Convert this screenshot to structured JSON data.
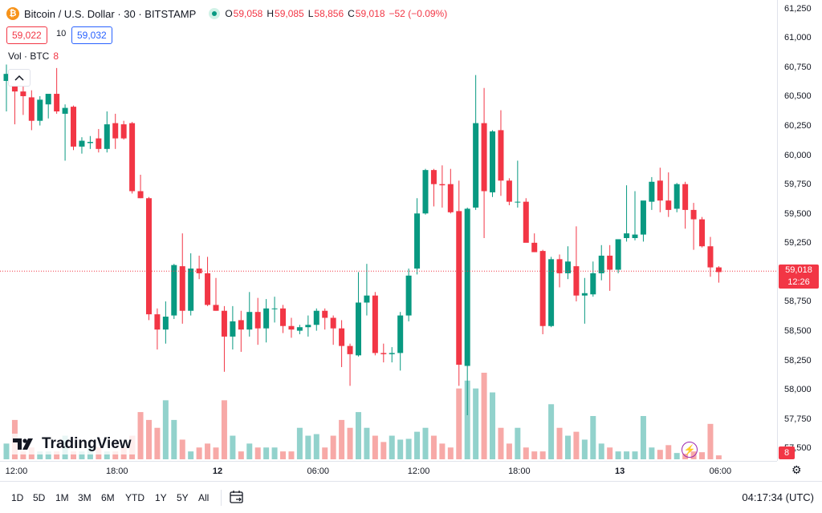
{
  "symbol": {
    "title": "Bitcoin / U.S. Dollar · 30 · BITSTAMP",
    "icon": "bitcoin-icon",
    "open_key": "O",
    "open": "59,058",
    "high_key": "H",
    "high": "59,085",
    "low_key": "L",
    "low": "58,856",
    "close_key": "C",
    "close": "59,018",
    "change": "−52 (−0.09%)"
  },
  "trade": {
    "sell": "59,022",
    "spread": "10",
    "buy": "59,032"
  },
  "volume": {
    "label": "Vol · BTC",
    "value": "8"
  },
  "price_axis": {
    "labels": [
      "61,250",
      "61,000",
      "60,750",
      "60,500",
      "60,250",
      "60,000",
      "59,750",
      "59,500",
      "59,250",
      "59,000",
      "58,750",
      "58,500",
      "58,250",
      "58,000",
      "57,750",
      "57,500"
    ]
  },
  "current_price": {
    "value": "59,018",
    "countdown": "12:26"
  },
  "time_axis": {
    "labels": [
      "12:00",
      "18:00",
      "12",
      "06:00",
      "12:00",
      "18:00",
      "13",
      "06:00"
    ]
  },
  "ranges": [
    "1D",
    "5D",
    "1M",
    "3M",
    "6M",
    "YTD",
    "1Y",
    "5Y",
    "All"
  ],
  "clock": "04:17:34 (UTC)",
  "logo": "TradingView",
  "colors": {
    "up": "#089981",
    "down": "#f23645",
    "up_vol": "#92d2cc",
    "down_vol": "#f7a9a7"
  },
  "chart_data": {
    "type": "candlestick",
    "interval": "30",
    "ylim": [
      57400,
      61330
    ],
    "candles": [
      {
        "o": 60640,
        "h": 60780,
        "l": 60380,
        "c": 60700
      },
      {
        "o": 60680,
        "h": 60720,
        "l": 60270,
        "c": 60550
      },
      {
        "o": 60550,
        "h": 60600,
        "l": 60350,
        "c": 60510
      },
      {
        "o": 60500,
        "h": 60560,
        "l": 60220,
        "c": 60300
      },
      {
        "o": 60300,
        "h": 60510,
        "l": 60260,
        "c": 60480
      },
      {
        "o": 60440,
        "h": 60520,
        "l": 60320,
        "c": 60530
      },
      {
        "o": 60530,
        "h": 60750,
        "l": 60360,
        "c": 60380
      },
      {
        "o": 60360,
        "h": 60440,
        "l": 59960,
        "c": 60410
      },
      {
        "o": 60420,
        "h": 60430,
        "l": 60050,
        "c": 60080
      },
      {
        "o": 60080,
        "h": 60160,
        "l": 60020,
        "c": 60130
      },
      {
        "o": 60110,
        "h": 60170,
        "l": 60060,
        "c": 60120
      },
      {
        "o": 60150,
        "h": 60230,
        "l": 60030,
        "c": 60060
      },
      {
        "o": 60060,
        "h": 60380,
        "l": 60030,
        "c": 60270
      },
      {
        "o": 60280,
        "h": 60360,
        "l": 60060,
        "c": 60150
      },
      {
        "o": 60270,
        "h": 60300,
        "l": 60140,
        "c": 60150
      },
      {
        "o": 60280,
        "h": 60290,
        "l": 59680,
        "c": 59700
      },
      {
        "o": 59700,
        "h": 59840,
        "l": 59640,
        "c": 59640
      },
      {
        "o": 59640,
        "h": 59650,
        "l": 58600,
        "c": 58650
      },
      {
        "o": 58650,
        "h": 58700,
        "l": 58350,
        "c": 58520
      },
      {
        "o": 58520,
        "h": 58760,
        "l": 58400,
        "c": 58630
      },
      {
        "o": 58640,
        "h": 59080,
        "l": 58610,
        "c": 59070
      },
      {
        "o": 59060,
        "h": 59340,
        "l": 58570,
        "c": 58680
      },
      {
        "o": 58680,
        "h": 59170,
        "l": 58640,
        "c": 59040
      },
      {
        "o": 59040,
        "h": 59150,
        "l": 58950,
        "c": 59000
      },
      {
        "o": 59000,
        "h": 59140,
        "l": 58720,
        "c": 58730
      },
      {
        "o": 58730,
        "h": 58960,
        "l": 58680,
        "c": 58680
      },
      {
        "o": 58680,
        "h": 58720,
        "l": 58160,
        "c": 58460
      },
      {
        "o": 58460,
        "h": 58720,
        "l": 58350,
        "c": 58590
      },
      {
        "o": 58600,
        "h": 58680,
        "l": 58330,
        "c": 58520
      },
      {
        "o": 58520,
        "h": 58840,
        "l": 58460,
        "c": 58670
      },
      {
        "o": 58670,
        "h": 58790,
        "l": 58390,
        "c": 58530
      },
      {
        "o": 58530,
        "h": 58780,
        "l": 58410,
        "c": 58700
      },
      {
        "o": 58700,
        "h": 58800,
        "l": 58580,
        "c": 58700
      },
      {
        "o": 58700,
        "h": 58730,
        "l": 58490,
        "c": 58550
      },
      {
        "o": 58550,
        "h": 58620,
        "l": 58450,
        "c": 58520
      },
      {
        "o": 58510,
        "h": 58560,
        "l": 58480,
        "c": 58540
      },
      {
        "o": 58540,
        "h": 58640,
        "l": 58460,
        "c": 58560
      },
      {
        "o": 58560,
        "h": 58700,
        "l": 58510,
        "c": 58680
      },
      {
        "o": 58680,
        "h": 58700,
        "l": 58520,
        "c": 58620
      },
      {
        "o": 58620,
        "h": 58640,
        "l": 58390,
        "c": 58530
      },
      {
        "o": 58530,
        "h": 58600,
        "l": 58200,
        "c": 58380
      },
      {
        "o": 58380,
        "h": 58400,
        "l": 58040,
        "c": 58310
      },
      {
        "o": 58300,
        "h": 59010,
        "l": 58290,
        "c": 58750
      },
      {
        "o": 58750,
        "h": 59080,
        "l": 58640,
        "c": 58810
      },
      {
        "o": 58810,
        "h": 58840,
        "l": 58300,
        "c": 58320
      },
      {
        "o": 58320,
        "h": 58400,
        "l": 58240,
        "c": 58310
      },
      {
        "o": 58310,
        "h": 58370,
        "l": 58240,
        "c": 58320
      },
      {
        "o": 58320,
        "h": 58670,
        "l": 58170,
        "c": 58640
      },
      {
        "o": 58640,
        "h": 59040,
        "l": 58590,
        "c": 58980
      },
      {
        "o": 59040,
        "h": 59640,
        "l": 58990,
        "c": 59510
      },
      {
        "o": 59510,
        "h": 59890,
        "l": 59500,
        "c": 59880
      },
      {
        "o": 59880,
        "h": 59890,
        "l": 59570,
        "c": 59760
      },
      {
        "o": 59760,
        "h": 59920,
        "l": 59560,
        "c": 59750
      },
      {
        "o": 59760,
        "h": 59890,
        "l": 59510,
        "c": 59520
      },
      {
        "o": 59530,
        "h": 59790,
        "l": 58040,
        "c": 58220
      },
      {
        "o": 58210,
        "h": 59560,
        "l": 57790,
        "c": 59550
      },
      {
        "o": 59560,
        "h": 60690,
        "l": 59540,
        "c": 60280
      },
      {
        "o": 60280,
        "h": 60580,
        "l": 59300,
        "c": 59700
      },
      {
        "o": 59690,
        "h": 60220,
        "l": 59650,
        "c": 60210
      },
      {
        "o": 60220,
        "h": 60390,
        "l": 59660,
        "c": 59790
      },
      {
        "o": 59790,
        "h": 59810,
        "l": 59580,
        "c": 59610
      },
      {
        "o": 59610,
        "h": 59960,
        "l": 59560,
        "c": 59610
      },
      {
        "o": 59610,
        "h": 59640,
        "l": 59270,
        "c": 59260
      },
      {
        "o": 59260,
        "h": 59340,
        "l": 59180,
        "c": 59180
      },
      {
        "o": 59190,
        "h": 59200,
        "l": 58480,
        "c": 58550
      },
      {
        "o": 58550,
        "h": 59140,
        "l": 58540,
        "c": 59120
      },
      {
        "o": 59120,
        "h": 59160,
        "l": 58880,
        "c": 59000
      },
      {
        "o": 59000,
        "h": 59230,
        "l": 58950,
        "c": 59100
      },
      {
        "o": 59060,
        "h": 59400,
        "l": 58760,
        "c": 58810
      },
      {
        "o": 58810,
        "h": 58960,
        "l": 58570,
        "c": 58830
      },
      {
        "o": 58820,
        "h": 59100,
        "l": 58800,
        "c": 59000
      },
      {
        "o": 59000,
        "h": 59240,
        "l": 58940,
        "c": 59150
      },
      {
        "o": 59150,
        "h": 59240,
        "l": 58850,
        "c": 59030
      },
      {
        "o": 59030,
        "h": 59290,
        "l": 59000,
        "c": 59290
      },
      {
        "o": 59300,
        "h": 59750,
        "l": 59270,
        "c": 59340
      },
      {
        "o": 59300,
        "h": 59700,
        "l": 59280,
        "c": 59330
      },
      {
        "o": 59330,
        "h": 59600,
        "l": 59270,
        "c": 59620
      },
      {
        "o": 59610,
        "h": 59820,
        "l": 59540,
        "c": 59780
      },
      {
        "o": 59790,
        "h": 59900,
        "l": 59520,
        "c": 59620
      },
      {
        "o": 59620,
        "h": 59860,
        "l": 59480,
        "c": 59540
      },
      {
        "o": 59550,
        "h": 59770,
        "l": 59520,
        "c": 59760
      },
      {
        "o": 59760,
        "h": 59780,
        "l": 59380,
        "c": 59540
      },
      {
        "o": 59540,
        "h": 59600,
        "l": 59200,
        "c": 59460
      },
      {
        "o": 59460,
        "h": 59480,
        "l": 59220,
        "c": 59230
      },
      {
        "o": 59230,
        "h": 59310,
        "l": 58970,
        "c": 59050
      },
      {
        "o": 59050,
        "h": 59060,
        "l": 58920,
        "c": 59010
      }
    ],
    "volume": [
      2,
      5,
      1,
      1.5,
      1,
      1,
      1,
      3,
      1,
      1,
      1.5,
      1.5,
      1,
      1,
      1.5,
      3,
      6,
      5,
      4,
      7.5,
      5,
      2.5,
      1,
      1.5,
      2,
      1.5,
      7.5,
      3,
      1,
      2,
      1.5,
      1.5,
      1.5,
      1,
      1,
      4,
      3,
      3.2,
      1.5,
      3,
      5,
      4,
      6,
      4,
      3,
      2.2,
      3,
      2.5,
      2.6,
      3.5,
      4,
      3,
      2,
      1.5,
      9,
      10,
      9,
      11,
      8.5,
      4,
      2,
      4,
      1.5,
      1,
      1,
      7,
      4,
      3,
      3.5,
      2.5,
      5.5,
      2,
      1.5,
      1,
      1,
      1,
      5.5,
      1.5,
      1.2,
      1.8,
      0.8,
      0.7,
      1,
      0.9,
      4.5,
      0.5
    ]
  }
}
